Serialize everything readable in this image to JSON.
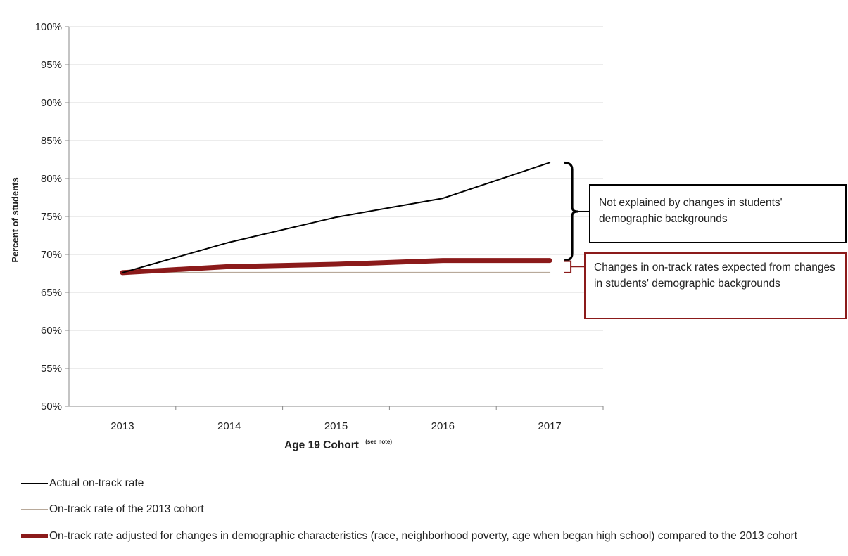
{
  "chart_data": {
    "type": "line",
    "categories": [
      "2013",
      "2014",
      "2015",
      "2016",
      "2017"
    ],
    "xlabel": "Age 19 Cohort",
    "xlabel_note": "(see note)",
    "ylabel": "Percent of students",
    "ylim": [
      50,
      100
    ],
    "yticks": [
      "50%",
      "55%",
      "60%",
      "65%",
      "70%",
      "75%",
      "80%",
      "85%",
      "90%",
      "95%",
      "100%"
    ],
    "grid": true,
    "series": [
      {
        "name": "Actual on-track rate",
        "color": "#000000",
        "values": [
          67.6,
          71.6,
          74.9,
          77.4,
          82.1
        ]
      },
      {
        "name": "On-track rate of the 2013 cohort",
        "color": "#b8a99a",
        "values": [
          67.6,
          67.6,
          67.6,
          67.6,
          67.6
        ]
      },
      {
        "name": "On-track rate adjusted for changes in demographic characteristics (race, neighborhood poverty, age when began high school) compared to the 2013 cohort",
        "color": "#8b1a1a",
        "values": [
          67.6,
          68.4,
          68.7,
          69.2,
          69.2
        ]
      }
    ],
    "annotations": [
      {
        "text": "Not explained by changes in students' demographic backgrounds",
        "color": "#000000"
      },
      {
        "text": "Changes in on-track rates expected from changes in students' demographic backgrounds",
        "color": "#8b1a1a"
      }
    ]
  }
}
